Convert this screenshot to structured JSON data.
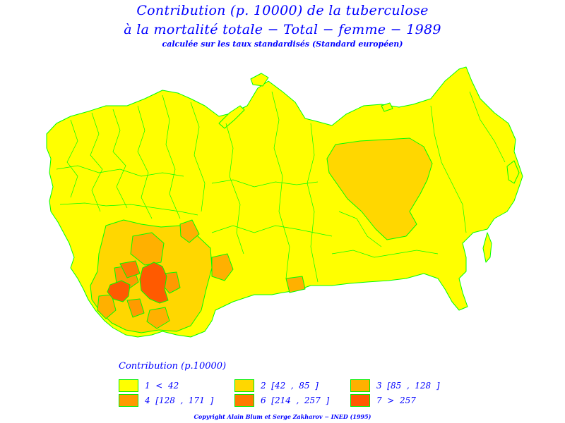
{
  "title": {
    "line1": "Contribution (p. 10000) de la tuberculose",
    "line2": "à la mortalité totale  −  Total  −  femme  −  1989",
    "subtitle": "calculée sur les taux standardisés (Standard européen)"
  },
  "legend": {
    "title": "Contribution (p.10000)",
    "items": [
      {
        "label": "1  <  42",
        "color": "#ffff00"
      },
      {
        "label": "2  [42  ,  85  ]",
        "color": "#ffd700"
      },
      {
        "label": "3  [85  ,  128  ]",
        "color": "#ffb000"
      },
      {
        "label": "4  [128  ,  171  ]",
        "color": "#ff9a00"
      },
      {
        "label": "6  [214  ,  257  ]",
        "color": "#ff7a00"
      },
      {
        "label": "7  >  257",
        "color": "#ff5a00"
      }
    ]
  },
  "copyright": "Copyright  Alain  Blum  et  Serge  Zakharov  −  INED  (1995)",
  "colors": {
    "title_text": "#0000ff",
    "region_border": "#00ff00",
    "class1": "#ffff00",
    "class2": "#ffd700",
    "class3": "#ffb000",
    "class4": "#ff9a00",
    "class6": "#ff7a00",
    "class7": "#ff5a00"
  }
}
